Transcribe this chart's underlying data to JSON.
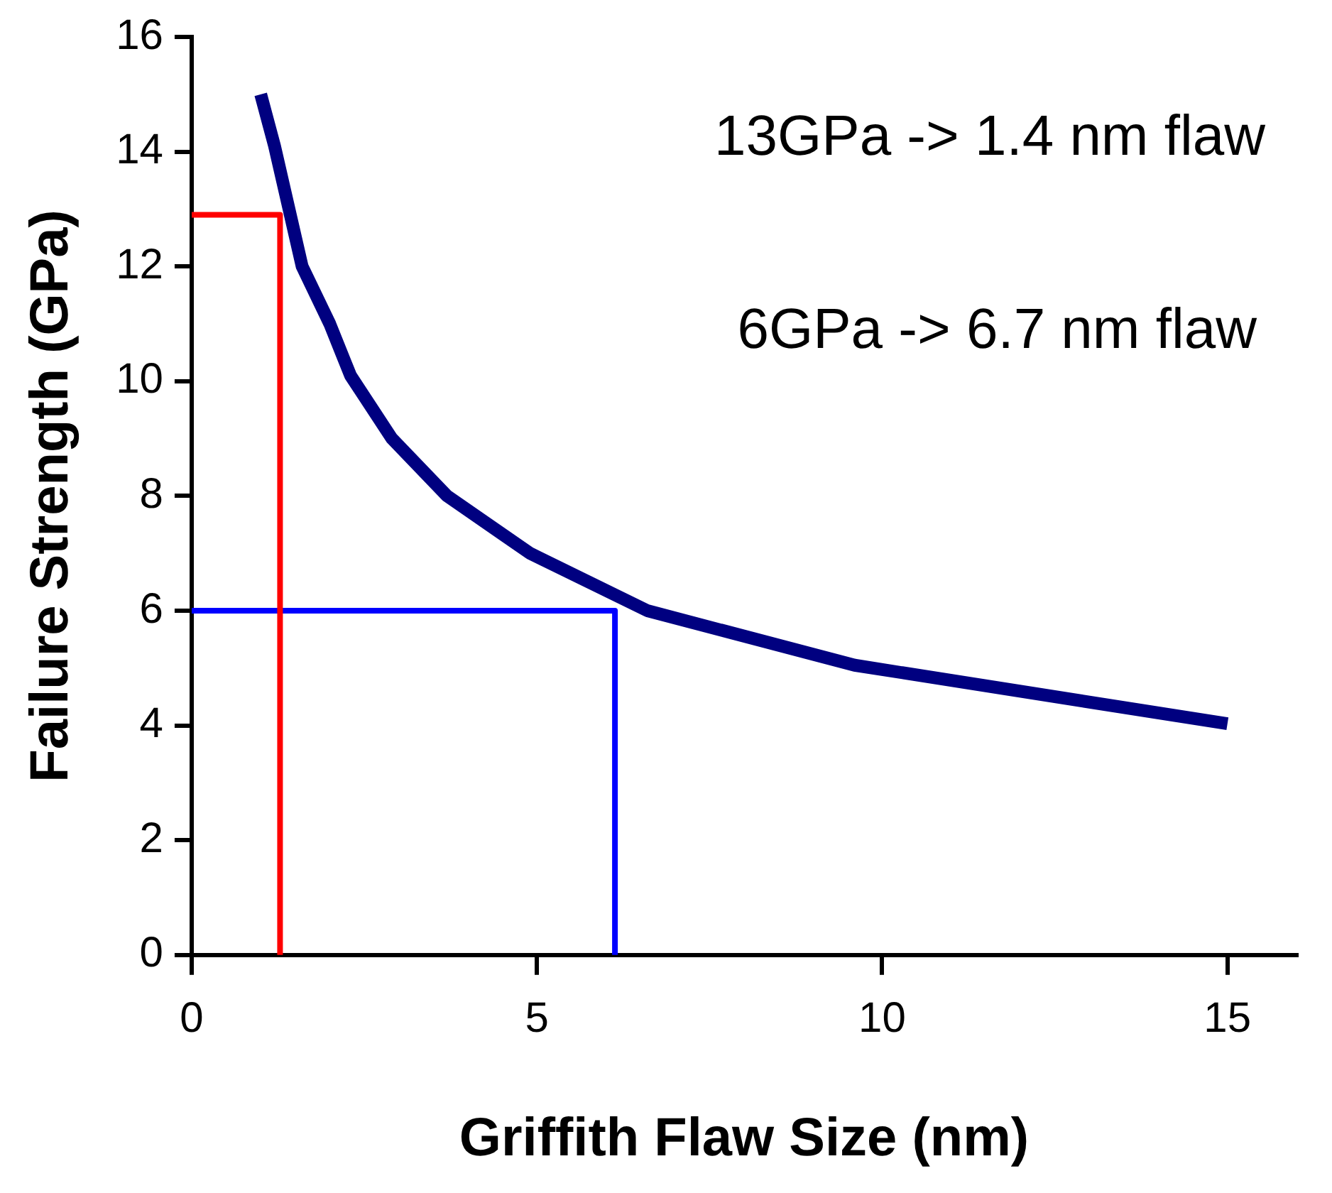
{
  "chart_data": {
    "type": "line",
    "xlabel": "Griffith Flaw Size (nm)",
    "ylabel": "Failure Strength (GPa)",
    "annotations": [
      "13GPa -> 1.4 nm flaw",
      "6GPa -> 6.7 nm flaw"
    ],
    "xlim": [
      0,
      16
    ],
    "xticks": [
      0,
      5,
      10,
      15
    ],
    "ylim": [
      0,
      16
    ],
    "yticks": [
      0,
      2,
      4,
      6,
      8,
      10,
      12,
      14,
      16
    ],
    "grid": false,
    "legend": false,
    "marker": "none",
    "line_style": "solid",
    "series": [
      {
        "color": "#000080",
        "x": [
          1.0,
          1.2,
          1.6,
          2.0,
          2.3,
          2.9,
          3.7,
          4.9,
          6.6,
          9.6,
          15.0
        ],
        "values": [
          15.0,
          14.1,
          12.0,
          11.0,
          10.1,
          9.0,
          8.0,
          7.0,
          6.0,
          5.05,
          4.03
        ]
      },
      {
        "color": "#ff0000",
        "x": [
          0,
          1.28,
          1.28
        ],
        "values": [
          12.9,
          12.9,
          0
        ]
      },
      {
        "color": "#0000ff",
        "x": [
          0,
          6.13,
          6.13
        ],
        "values": [
          6.0,
          6.0,
          0
        ]
      }
    ]
  }
}
